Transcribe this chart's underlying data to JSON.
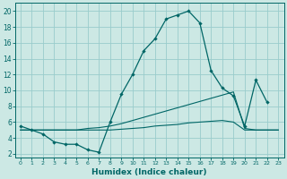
{
  "xlabel": "Humidex (Indice chaleur)",
  "bg_color": "#cce8e4",
  "grid_color": "#99cccc",
  "line_color": "#006666",
  "xlim": [
    -0.5,
    23.5
  ],
  "ylim": [
    1.5,
    21
  ],
  "yticks": [
    2,
    4,
    6,
    8,
    10,
    12,
    14,
    16,
    18,
    20
  ],
  "xticks": [
    0,
    1,
    2,
    3,
    4,
    5,
    6,
    7,
    8,
    9,
    10,
    11,
    12,
    13,
    14,
    15,
    16,
    17,
    18,
    19,
    20,
    21,
    22,
    23
  ],
  "line1_x": [
    0,
    1,
    2,
    3,
    4,
    5,
    6,
    7,
    8,
    9,
    10,
    11,
    12,
    13,
    14,
    15,
    16,
    17,
    18,
    19,
    20,
    21,
    22
  ],
  "line1_y": [
    5.5,
    5.0,
    4.5,
    3.5,
    3.2,
    3.2,
    2.5,
    2.2,
    6.0,
    9.5,
    12.0,
    15.0,
    16.5,
    19.0,
    19.5,
    20.0,
    18.5,
    12.5,
    10.3,
    9.3,
    5.5,
    11.3,
    8.5
  ],
  "line2_x": [
    0,
    1,
    2,
    3,
    4,
    5,
    6,
    7,
    8,
    9,
    10,
    11,
    12,
    13,
    14,
    15,
    16,
    17,
    18,
    19,
    20,
    21,
    22,
    23
  ],
  "line2_y": [
    5.0,
    5.0,
    5.0,
    5.0,
    5.0,
    5.0,
    5.2,
    5.3,
    5.5,
    5.8,
    6.2,
    6.6,
    7.0,
    7.4,
    7.8,
    8.2,
    8.6,
    9.0,
    9.4,
    9.8,
    5.2,
    5.0,
    5.0,
    5.0
  ],
  "line3_x": [
    0,
    1,
    2,
    3,
    4,
    5,
    6,
    7,
    8,
    9,
    10,
    11,
    12,
    13,
    14,
    15,
    16,
    17,
    18,
    19,
    20,
    21,
    22,
    23
  ],
  "line3_y": [
    5.0,
    5.0,
    5.0,
    5.0,
    5.0,
    5.0,
    5.0,
    5.0,
    5.0,
    5.1,
    5.2,
    5.3,
    5.5,
    5.6,
    5.7,
    5.9,
    6.0,
    6.1,
    6.2,
    6.0,
    5.0,
    5.0,
    5.0,
    5.0
  ]
}
